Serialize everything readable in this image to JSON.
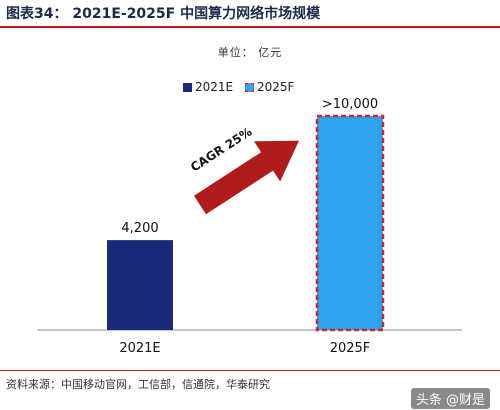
{
  "header": {
    "title": "图表34：  2021E-2025F 中国算力网络市场规模"
  },
  "unit_label": "单位：  亿元",
  "source": "资料来源：中国移动官网，工信部，信通院，华泰研究",
  "watermark": "头条 @财是",
  "annotation": {
    "text": "CAGR 25%",
    "arrow_color": "#b01c1c"
  },
  "colors": {
    "bar_2021E": "#1a2a78",
    "bar_2025F": "#2ea3ee",
    "bar_2025F_border": "#d4242c",
    "accent_line": "#b31b1b"
  },
  "chart_data": {
    "type": "bar",
    "title": "2021E-2025F 中国算力网络市场规模",
    "unit": "亿元",
    "categories": [
      "2021E",
      "2025F"
    ],
    "values": [
      4200,
      10000
    ],
    "data_labels": [
      "4,200",
      ">10,000"
    ],
    "legend": [
      "2021E",
      "2025F"
    ],
    "legend_placement": "top-center",
    "ylim": [
      0,
      10000
    ],
    "grid": false
  }
}
